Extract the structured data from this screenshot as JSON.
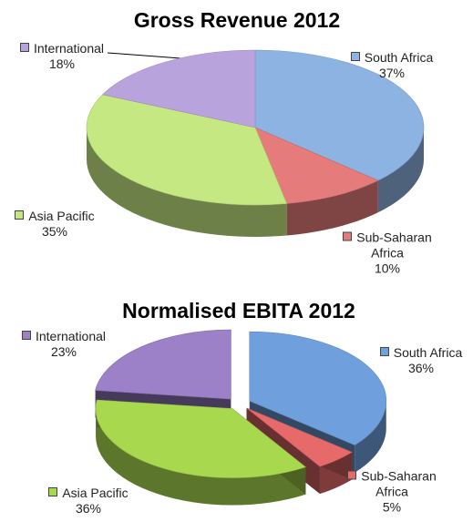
{
  "chart_data": [
    {
      "type": "pie",
      "title": "Gross Revenue 2012",
      "categories": [
        "South Africa",
        "Sub-Saharan Africa",
        "Asia Pacific",
        "International"
      ],
      "values": [
        37,
        10,
        35,
        18
      ],
      "value_labels": [
        "37%",
        "10%",
        "35%",
        "18%"
      ],
      "colors": [
        "#8db3e2",
        "#e67b7b",
        "#c6e882",
        "#b9a3dc"
      ]
    },
    {
      "type": "pie",
      "title": "Normalised EBITA 2012",
      "categories": [
        "South Africa",
        "Sub-Saharan Africa",
        "Asia Pacific",
        "International"
      ],
      "values": [
        36,
        5,
        36,
        23
      ],
      "value_labels": [
        "36%",
        "5%",
        "36%",
        "23%"
      ],
      "colors": [
        "#6f9fdc",
        "#e66a6a",
        "#a8d84e",
        "#9c80c8"
      ]
    }
  ]
}
